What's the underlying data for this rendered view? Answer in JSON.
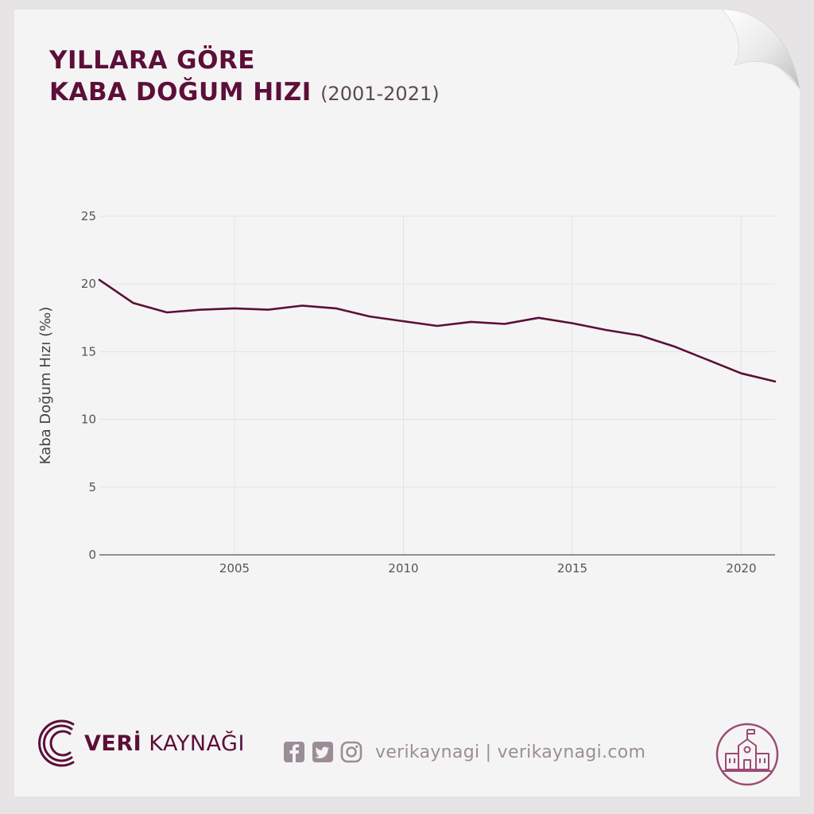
{
  "header": {
    "title_line1": "YILLARA GÖRE",
    "title_line2": "KABA DOĞUM HIZI",
    "title_range": "(2001-2021)"
  },
  "chart_data": {
    "type": "line",
    "title": "YILLARA GÖRE KABA DOĞUM HIZI (2001-2021)",
    "xlabel": "",
    "ylabel": "Kaba Doğum Hızı (‰)",
    "x": [
      2001,
      2002,
      2003,
      2004,
      2005,
      2006,
      2007,
      2008,
      2009,
      2010,
      2011,
      2012,
      2013,
      2014,
      2015,
      2016,
      2017,
      2018,
      2019,
      2020,
      2021
    ],
    "series": [
      {
        "values": [
          20.3,
          18.6,
          17.9,
          18.1,
          18.2,
          18.1,
          18.4,
          18.2,
          17.6,
          17.25,
          16.9,
          17.2,
          17.05,
          17.5,
          17.1,
          16.6,
          16.2,
          15.4,
          14.4,
          13.4,
          12.8
        ]
      }
    ],
    "xlim": [
      2001,
      2021
    ],
    "ylim": [
      0,
      25
    ],
    "x_ticks": [
      2005,
      2010,
      2015,
      2020
    ],
    "y_ticks": [
      0,
      5,
      10,
      15,
      20,
      25
    ],
    "grid": true,
    "line_color": "#5c0f38"
  },
  "footer": {
    "brand_bold": "VERİ",
    "brand_rest": " KAYNAĞI",
    "social_text": "verikaynagi | verikaynagi.com",
    "icons": [
      "facebook-icon",
      "twitter-icon",
      "instagram-icon",
      "school-building-icon"
    ]
  },
  "colors": {
    "accent": "#5c0f38",
    "muted": "#9b8d96",
    "background": "#f4f4f4"
  }
}
